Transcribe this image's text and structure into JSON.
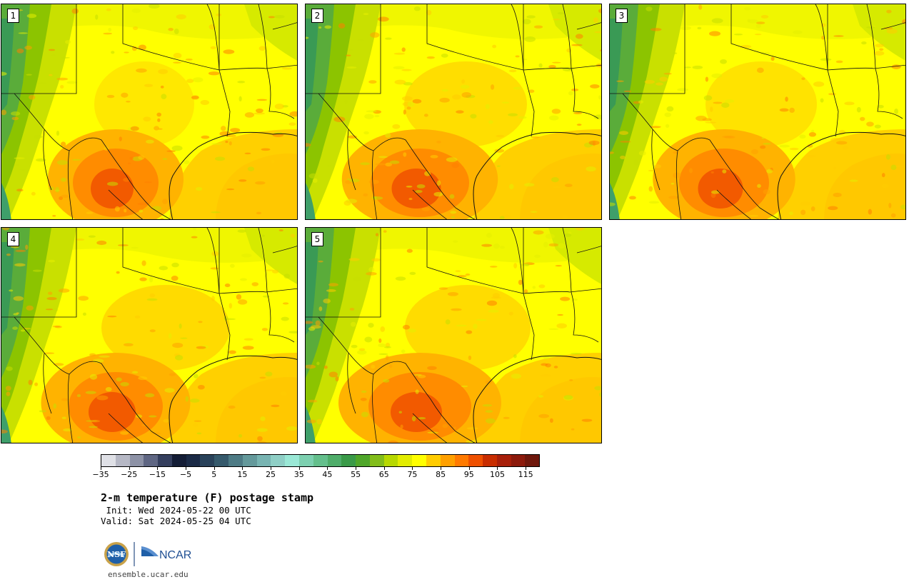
{
  "panels": [
    {
      "label": "1"
    },
    {
      "label": "2"
    },
    {
      "label": "3"
    },
    {
      "label": "4"
    },
    {
      "label": "5"
    }
  ],
  "colorbar": {
    "colors": [
      "#dfe0e6",
      "#b6b8c5",
      "#8d92a6",
      "#5f6683",
      "#353f5e",
      "#141d36",
      "#1b2a46",
      "#29425a",
      "#365a6c",
      "#4e7b85",
      "#64999b",
      "#78b4b2",
      "#8fcfc6",
      "#9ae8d6",
      "#7dd0b0",
      "#64bf8c",
      "#4fad6a",
      "#3a9a48",
      "#4fa62a",
      "#82bd1a",
      "#b7d800",
      "#e2ec00",
      "#ffff00",
      "#ffcc00",
      "#ffa000",
      "#ff7a00",
      "#ee5000",
      "#c82d00",
      "#a71f0a",
      "#8c1a0c",
      "#6e170c"
    ],
    "tick_labels": [
      "−35",
      "−25",
      "−15",
      "−5",
      "5",
      "15",
      "25",
      "35",
      "45",
      "55",
      "65",
      "75",
      "85",
      "95",
      "105",
      "115"
    ]
  },
  "caption": {
    "title": "2-m temperature (F) postage stamp",
    "init": " Init: Wed 2024-05-22 00 UTC",
    "valid": "Valid: Sat 2024-05-25 04 UTC"
  },
  "logos": {
    "nsf": "NSF",
    "ncar": "NCAR"
  },
  "footer": {
    "site": "ensemble.ucar.edu"
  }
}
